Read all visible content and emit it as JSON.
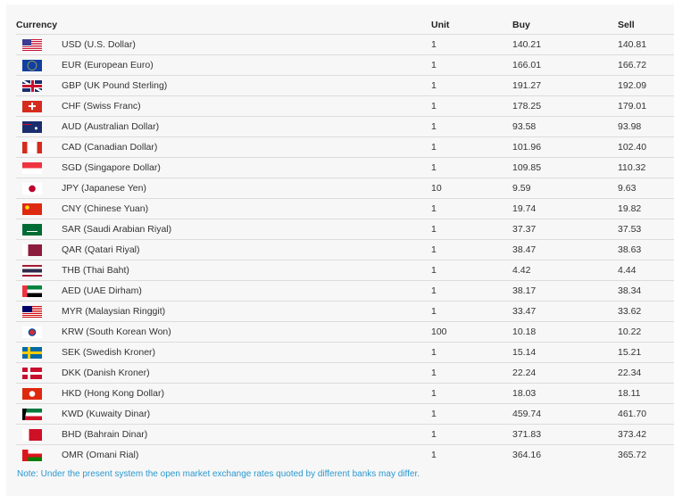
{
  "headers": {
    "currency": "Currency",
    "unit": "Unit",
    "buy": "Buy",
    "sell": "Sell"
  },
  "rows": [
    {
      "flag": "us-flag-icon",
      "name": "USD (U.S. Dollar)",
      "unit": "1",
      "buy": "140.21",
      "sell": "140.81"
    },
    {
      "flag": "eu-flag-icon",
      "name": "EUR (European Euro)",
      "unit": "1",
      "buy": "166.01",
      "sell": "166.72"
    },
    {
      "flag": "uk-flag-icon",
      "name": "GBP (UK Pound Sterling)",
      "unit": "1",
      "buy": "191.27",
      "sell": "192.09"
    },
    {
      "flag": "ch-flag-icon",
      "name": "CHF (Swiss Franc)",
      "unit": "1",
      "buy": "178.25",
      "sell": "179.01"
    },
    {
      "flag": "au-flag-icon",
      "name": "AUD (Australian Dollar)",
      "unit": "1",
      "buy": "93.58",
      "sell": "93.98"
    },
    {
      "flag": "ca-flag-icon",
      "name": "CAD (Canadian Dollar)",
      "unit": "1",
      "buy": "101.96",
      "sell": "102.40"
    },
    {
      "flag": "sg-flag-icon",
      "name": "SGD (Singapore Dollar)",
      "unit": "1",
      "buy": "109.85",
      "sell": "110.32"
    },
    {
      "flag": "jp-flag-icon",
      "name": "JPY (Japanese Yen)",
      "unit": "10",
      "buy": "9.59",
      "sell": "9.63"
    },
    {
      "flag": "cn-flag-icon",
      "name": "CNY (Chinese Yuan)",
      "unit": "1",
      "buy": "19.74",
      "sell": "19.82"
    },
    {
      "flag": "sa-flag-icon",
      "name": "SAR (Saudi Arabian Riyal)",
      "unit": "1",
      "buy": "37.37",
      "sell": "37.53"
    },
    {
      "flag": "qa-flag-icon",
      "name": "QAR (Qatari Riyal)",
      "unit": "1",
      "buy": "38.47",
      "sell": "38.63"
    },
    {
      "flag": "th-flag-icon",
      "name": "THB (Thai Baht)",
      "unit": "1",
      "buy": "4.42",
      "sell": "4.44"
    },
    {
      "flag": "ae-flag-icon",
      "name": "AED (UAE Dirham)",
      "unit": "1",
      "buy": "38.17",
      "sell": "38.34"
    },
    {
      "flag": "my-flag-icon",
      "name": "MYR (Malaysian Ringgit)",
      "unit": "1",
      "buy": "33.47",
      "sell": "33.62"
    },
    {
      "flag": "kr-flag-icon",
      "name": "KRW (South Korean Won)",
      "unit": "100",
      "buy": "10.18",
      "sell": "10.22"
    },
    {
      "flag": "se-flag-icon",
      "name": "SEK (Swedish Kroner)",
      "unit": "1",
      "buy": "15.14",
      "sell": "15.21"
    },
    {
      "flag": "dk-flag-icon",
      "name": "DKK (Danish Kroner)",
      "unit": "1",
      "buy": "22.24",
      "sell": "22.34"
    },
    {
      "flag": "hk-flag-icon",
      "name": "HKD (Hong Kong Dollar)",
      "unit": "1",
      "buy": "18.03",
      "sell": "18.11"
    },
    {
      "flag": "kw-flag-icon",
      "name": "KWD (Kuwaity Dinar)",
      "unit": "1",
      "buy": "459.74",
      "sell": "461.70"
    },
    {
      "flag": "bh-flag-icon",
      "name": "BHD (Bahrain Dinar)",
      "unit": "1",
      "buy": "371.83",
      "sell": "373.42"
    },
    {
      "flag": "om-flag-icon",
      "name": "OMR (Omani Rial)",
      "unit": "1",
      "buy": "364.16",
      "sell": "365.72"
    }
  ],
  "note": "Note: Under the present system the open market exchange rates quoted by different banks may differ.",
  "colors": {
    "note": "#2a98d0",
    "background": "#f7f7f7"
  }
}
